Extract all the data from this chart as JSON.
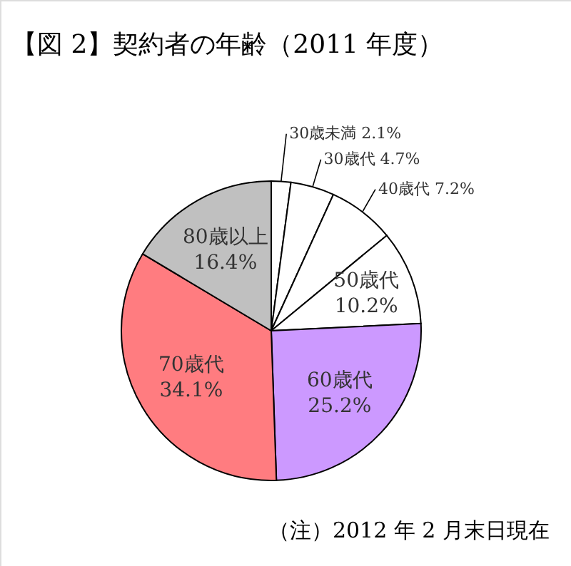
{
  "chart_data": {
    "type": "pie",
    "title": "【図 2】契約者の年齢（2011 年度）",
    "categories": [
      "30歳未満",
      "30歳代",
      "40歳代",
      "50歳代",
      "60歳代",
      "70歳代",
      "80歳以上"
    ],
    "values": [
      2.1,
      4.7,
      7.2,
      10.2,
      25.2,
      34.1,
      16.4
    ],
    "value_labels": [
      "2.1%",
      "4.7%",
      "7.2%",
      "10.2%",
      "25.2%",
      "34.1%",
      "16.4%"
    ],
    "colors": [
      "#ffffff",
      "#ffffff",
      "#ffffff",
      "#ffffff",
      "#cc99ff",
      "#ff7c80",
      "#c0c0c0"
    ],
    "annotations": [
      "（注）2012 年 2 月末日現在"
    ]
  }
}
